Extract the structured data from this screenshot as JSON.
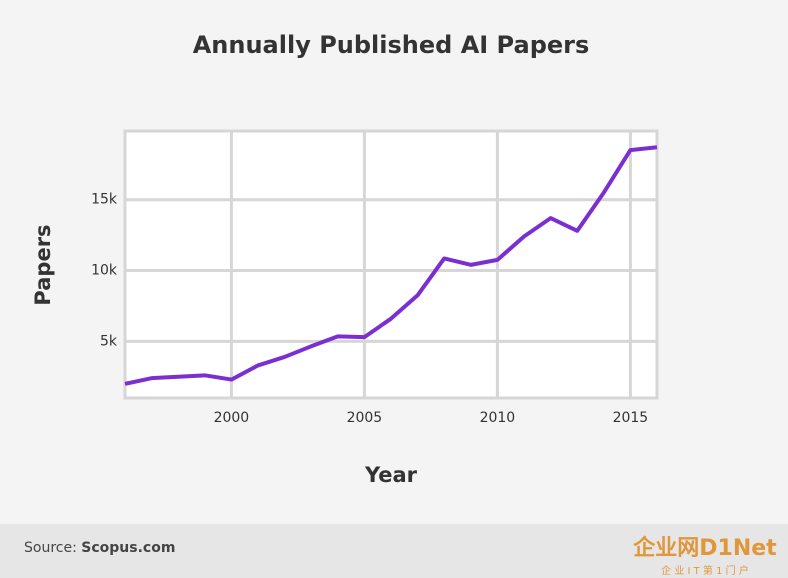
{
  "chart_data": {
    "type": "line",
    "title": "Annually Published AI Papers",
    "x_label": "Year",
    "y_label": "Papers",
    "x": [
      1996,
      1997,
      1998,
      1999,
      2000,
      2001,
      2002,
      2003,
      2004,
      2005,
      2006,
      2007,
      2008,
      2009,
      2010,
      2011,
      2012,
      2013,
      2014,
      2015,
      2016
    ],
    "series": [
      {
        "name": "Papers",
        "color": "#7b2fd0",
        "values": [
          2000,
          2400,
          2500,
          2600,
          2300,
          3300,
          3900,
          4650,
          5350,
          5300,
          6600,
          8250,
          10850,
          10400,
          10750,
          12400,
          13700,
          12800,
          15500,
          18500,
          18700
        ]
      }
    ],
    "xlim": [
      1996,
      2016
    ],
    "xticks": [
      2000,
      2005,
      2010,
      2015
    ],
    "ylim": [
      1000,
      19850
    ],
    "yticks": [
      {
        "value": 5000,
        "label": "5k"
      },
      {
        "value": 10000,
        "label": "10k"
      },
      {
        "value": 15000,
        "label": "15k"
      }
    ],
    "grid": true
  },
  "footer": {
    "source_label": "Source:",
    "source": "Scopus.com"
  },
  "watermark": {
    "brand": "企业网D1Net",
    "tagline": "企 业 I T 第 1 门 户"
  }
}
